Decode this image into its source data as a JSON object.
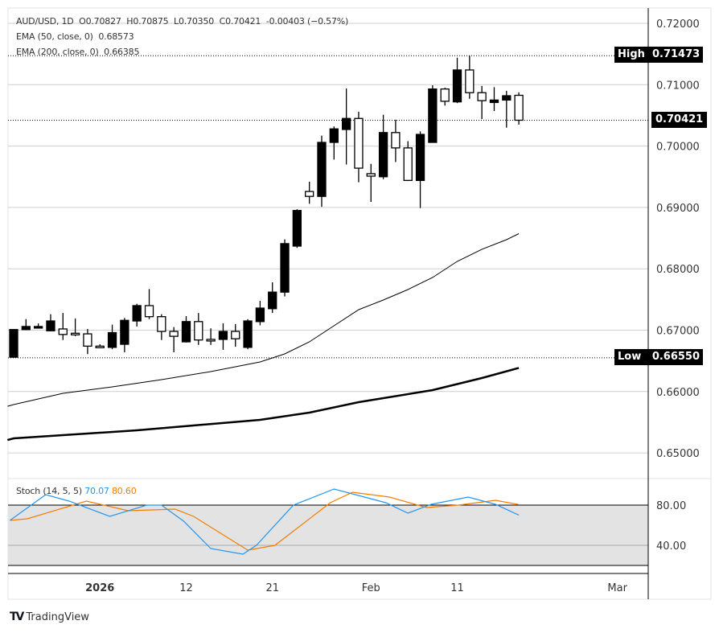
{
  "legend": {
    "symbol": "AUD/USD, 1D",
    "open": "O0.70827",
    "high": "H0.70875",
    "low": "L0.70350",
    "close": "C0.70421",
    "change": "-0.00403 (−0.57%)",
    "ema50": "EMA (50, close, 0)  0.68573",
    "ema200": "EMA (200, close, 0)  0.66385",
    "stoch_title": "Stoch (14, 5, 5)",
    "stoch_k": "70.07",
    "stoch_d": "80.60"
  },
  "tags": {
    "high_label": "High",
    "high_value": "0.71473",
    "low_label": "Low",
    "low_value": "0.66550",
    "last_value": "0.70421"
  },
  "footer": {
    "brand": "TradingView"
  },
  "colors": {
    "up": "#000000",
    "down": "#ffffff",
    "stoch_k": "#2196f3",
    "stoch_d": "#f57c00",
    "band": "#e3e3e3"
  },
  "chart_data": {
    "type": "candlestick",
    "title": "AUD/USD, 1D",
    "ylim": [
      0.645,
      0.7235
    ],
    "yticks": [
      "0.72000",
      "0.71000",
      "0.70000",
      "0.69000",
      "0.68000",
      "0.67000",
      "0.66000",
      "0.65000"
    ],
    "xticks": [
      {
        "i": 7,
        "label": "2026",
        "bold": true
      },
      {
        "i": 14,
        "label": "12"
      },
      {
        "i": 21,
        "label": "21"
      },
      {
        "i": 29,
        "label": "Feb"
      },
      {
        "i": 36,
        "label": "11"
      },
      {
        "i": 49,
        "label": "Mar"
      }
    ],
    "ohlc": [
      [
        0.6656,
        0.6701,
        0.6656,
        0.6701
      ],
      [
        0.6701,
        0.6718,
        0.67,
        0.6706
      ],
      [
        0.6705,
        0.6711,
        0.6704,
        0.6706
      ],
      [
        0.6699,
        0.6726,
        0.6698,
        0.6715
      ],
      [
        0.6702,
        0.6728,
        0.6684,
        0.6693
      ],
      [
        0.6695,
        0.6719,
        0.669,
        0.6694
      ],
      [
        0.6694,
        0.6702,
        0.6661,
        0.6674
      ],
      [
        0.6674,
        0.6677,
        0.6671,
        0.6673
      ],
      [
        0.6672,
        0.6709,
        0.6669,
        0.6696
      ],
      [
        0.6677,
        0.672,
        0.6664,
        0.6716
      ],
      [
        0.6715,
        0.6743,
        0.6706,
        0.674
      ],
      [
        0.674,
        0.6767,
        0.6718,
        0.6722
      ],
      [
        0.6722,
        0.6726,
        0.6684,
        0.6698
      ],
      [
        0.6698,
        0.6705,
        0.6664,
        0.669
      ],
      [
        0.6681,
        0.6723,
        0.668,
        0.6714
      ],
      [
        0.6714,
        0.6728,
        0.6676,
        0.6684
      ],
      [
        0.6685,
        0.6703,
        0.6676,
        0.6684
      ],
      [
        0.6685,
        0.6711,
        0.6668,
        0.6698
      ],
      [
        0.6698,
        0.671,
        0.6673,
        0.6686
      ],
      [
        0.6672,
        0.6718,
        0.6669,
        0.6715
      ],
      [
        0.6714,
        0.6748,
        0.6708,
        0.6736
      ],
      [
        0.6735,
        0.6778,
        0.6728,
        0.6762
      ],
      [
        0.6762,
        0.6848,
        0.6755,
        0.6841
      ],
      [
        0.6837,
        0.6897,
        0.6834,
        0.6895
      ],
      [
        0.6926,
        0.6942,
        0.6906,
        0.6918
      ],
      [
        0.6918,
        0.7017,
        0.6901,
        0.7006
      ],
      [
        0.7006,
        0.7032,
        0.6978,
        0.7028
      ],
      [
        0.7027,
        0.7094,
        0.697,
        0.7045
      ],
      [
        0.7045,
        0.7056,
        0.6941,
        0.6964
      ],
      [
        0.6955,
        0.6971,
        0.6909,
        0.6951
      ],
      [
        0.695,
        0.7051,
        0.6946,
        0.7022
      ],
      [
        0.7022,
        0.7043,
        0.6974,
        0.6997
      ],
      [
        0.6997,
        0.7008,
        0.6943,
        0.6944
      ],
      [
        0.6944,
        0.7024,
        0.6899,
        0.7019
      ],
      [
        0.7006,
        0.7099,
        0.7006,
        0.7093
      ],
      [
        0.7093,
        0.7095,
        0.7066,
        0.7073
      ],
      [
        0.7072,
        0.7144,
        0.707,
        0.7124
      ],
      [
        0.7124,
        0.7147,
        0.7077,
        0.7087
      ],
      [
        0.7087,
        0.7098,
        0.7044,
        0.7074
      ],
      [
        0.7071,
        0.7096,
        0.7057,
        0.7075
      ],
      [
        0.7075,
        0.709,
        0.703,
        0.7082
      ],
      [
        0.70827,
        0.70875,
        0.7035,
        0.70421
      ]
    ],
    "ema50": [
      [
        -0.5,
        0.6576
      ],
      [
        0,
        0.65788
      ],
      [
        4,
        0.65971
      ],
      [
        8,
        0.66076
      ],
      [
        12,
        0.66194
      ],
      [
        16,
        0.66325
      ],
      [
        20,
        0.66482
      ],
      [
        22,
        0.66613
      ],
      [
        24,
        0.6681
      ],
      [
        26,
        0.67072
      ],
      [
        28,
        0.67334
      ],
      [
        30,
        0.67492
      ],
      [
        32,
        0.67662
      ],
      [
        34,
        0.67859
      ],
      [
        36,
        0.68121
      ],
      [
        38,
        0.68318
      ],
      [
        40,
        0.68475
      ],
      [
        41,
        0.68573
      ]
    ],
    "ema200": [
      [
        -0.5,
        0.6521
      ],
      [
        0,
        0.65237
      ],
      [
        10,
        0.65368
      ],
      [
        20,
        0.65539
      ],
      [
        24,
        0.65657
      ],
      [
        28,
        0.65827
      ],
      [
        34,
        0.66024
      ],
      [
        38,
        0.6622
      ],
      [
        41,
        0.66385
      ]
    ],
    "high_level": 0.71473,
    "low_level": 0.6655,
    "last": 0.70421,
    "stoch": {
      "ylim": [
        12,
        105
      ],
      "levels": [
        80,
        40
      ],
      "band": [
        20,
        80
      ],
      "ytick_labels": [
        "80.00",
        "40.00"
      ],
      "k": [
        [
          -0.3,
          64.8
        ],
        [
          2.6,
          90.4
        ],
        [
          4.5,
          84
        ],
        [
          7.8,
          68.8
        ],
        [
          10.8,
          80
        ],
        [
          12,
          80
        ],
        [
          13.8,
          64
        ],
        [
          16,
          36.8
        ],
        [
          18.6,
          31.2
        ],
        [
          19.7,
          40
        ],
        [
          22.7,
          80
        ],
        [
          26,
          96
        ],
        [
          30.2,
          82.4
        ],
        [
          32,
          72
        ],
        [
          33.9,
          80.8
        ],
        [
          36.9,
          88
        ],
        [
          39.1,
          80.8
        ],
        [
          41,
          70.07
        ]
      ],
      "d": [
        [
          -0.3,
          64.8
        ],
        [
          1.1,
          66.4
        ],
        [
          5.9,
          84
        ],
        [
          9.3,
          74.4
        ],
        [
          13.1,
          76
        ],
        [
          14.6,
          68.8
        ],
        [
          19,
          35.2
        ],
        [
          21.2,
          40
        ],
        [
          25.7,
          82.4
        ],
        [
          27.5,
          92.8
        ],
        [
          30.5,
          88
        ],
        [
          33.5,
          77.6
        ],
        [
          36.1,
          80
        ],
        [
          39.1,
          84.8
        ],
        [
          41,
          80.6
        ]
      ]
    }
  }
}
